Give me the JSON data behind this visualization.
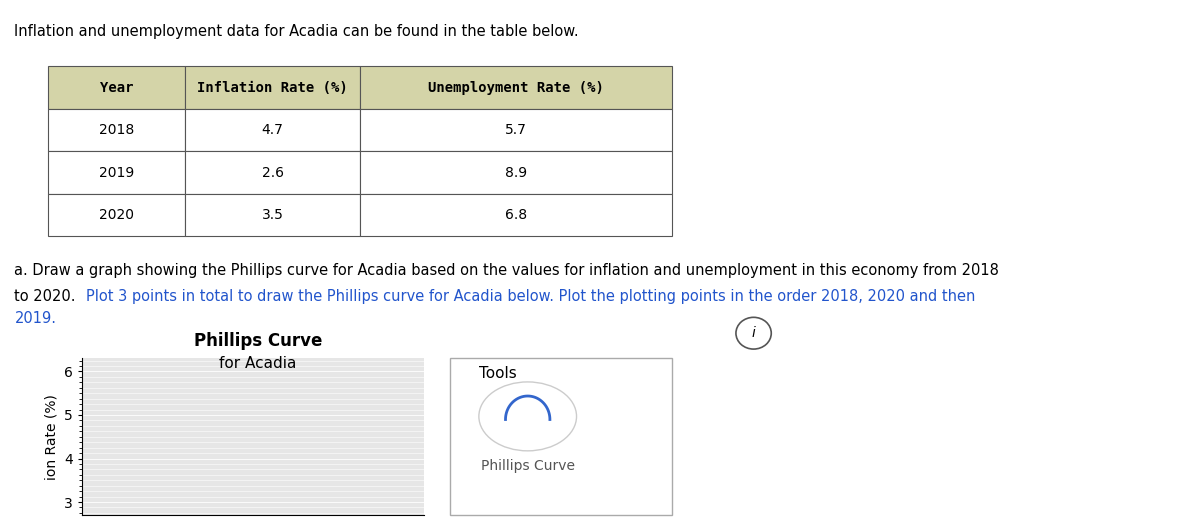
{
  "title_text": "Inflation and unemployment data for Acadia can be found in the table below.",
  "table_headers": [
    "Year",
    "Inflation Rate (%)",
    "Unemployment Rate (%)"
  ],
  "table_data": [
    [
      "2018",
      "4.7",
      "5.7"
    ],
    [
      "2019",
      "2.6",
      "8.9"
    ],
    [
      "2020",
      "3.5",
      "6.8"
    ]
  ],
  "graph_title_line1": "Phillips Curve",
  "graph_title_line2": "for Acadia",
  "ylabel": "ion Rate (%)",
  "yticks": [
    3,
    4,
    5,
    6
  ],
  "ylim": [
    2.7,
    6.3
  ],
  "tools_label": "Tools",
  "phillips_curve_label": "Phillips Curve",
  "background_color": "#ffffff",
  "plot_bg_color": "#e6e6e6",
  "grid_color": "#ffffff",
  "table_header_bg": "#d4d4a8",
  "table_row_bg": "#ffffff",
  "table_border_color": "#555555",
  "blue_color": "#2255cc",
  "arc_color": "#3366cc",
  "icon_circle_color": "#cccccc",
  "info_icon_color": "#555555",
  "tools_border_color": "#aaaaaa",
  "instr_black1": "a. Draw a graph showing the Phillips curve for Acadia based on the values for inflation and unemployment in this economy from 2018",
  "instr_black2": "to 2020. ",
  "instr_blue1": "Plot 3 points in total to draw the Phillips curve for Acadia below. Plot the plotting points in the order 2018, 2020 and then",
  "instr_blue2": "2019.",
  "fontsize_main": 10.5,
  "fontsize_table_header": 10,
  "fontsize_table_data": 10,
  "fontsize_graph_title": 12,
  "fontsize_ylabel": 10
}
